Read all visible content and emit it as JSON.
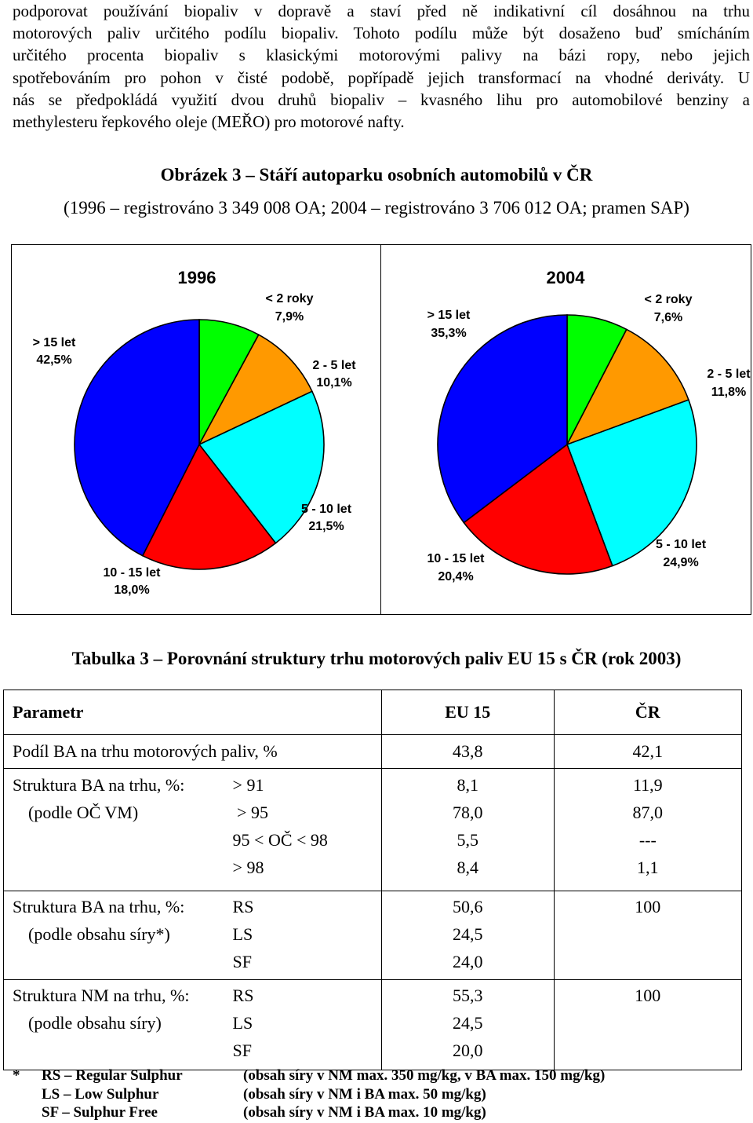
{
  "paragraph": {
    "lines": [
      "podporovat používání biopaliv v dopravě a staví před ně indikativní cíl dosáhnou na trhu",
      "motorových paliv určitého podílu biopaliv. Tohoto podílu může být dosaženo buď smícháním",
      "určitého procenta biopaliv s klasickými motorovými palivy na bázi ropy, nebo jejich",
      "spotřebováním pro pohon v čisté podobě, popřípadě jejich transformací na vhodné deriváty. U",
      "nás se předpokládá využití dvou druhů biopaliv – kvasného lihu pro automobilové benziny a",
      "methylesteru řepkového oleje (MEŘO) pro motorové nafty."
    ]
  },
  "figure": {
    "title": "Obrázek 3 – Stáří autoparku osobních automobilů v ČR",
    "subtitle": "(1996 – registrováno 3 349 008 OA; 2004 – registrováno 3 706 012 OA; pramen SAP)"
  },
  "chart_data": [
    {
      "type": "pie",
      "title": "1996",
      "slices": [
        {
          "label": "< 2 roky",
          "value": 7.9,
          "value_text": "7,9%",
          "color": "#00ff00"
        },
        {
          "label": "2 - 5 let",
          "value": 10.1,
          "value_text": "10,1%",
          "color": "#ff9900"
        },
        {
          "label": "5 - 10 let",
          "value": 21.5,
          "value_text": "21,5%",
          "color": "#00ffff"
        },
        {
          "label": "10 - 15 let",
          "value": 18.0,
          "value_text": "18,0%",
          "color": "#ff0000"
        },
        {
          "label": "> 15 let",
          "value": 42.5,
          "value_text": "42,5%",
          "color": "#0000ff"
        }
      ]
    },
    {
      "type": "pie",
      "title": "2004",
      "slices": [
        {
          "label": "< 2 roky",
          "value": 7.6,
          "value_text": "7,6%",
          "color": "#00ff00"
        },
        {
          "label": "2 - 5 let",
          "value": 11.8,
          "value_text": "11,8%",
          "color": "#ff9900"
        },
        {
          "label": "5 - 10 let",
          "value": 24.9,
          "value_text": "24,9%",
          "color": "#00ffff"
        },
        {
          "label": "10 - 15 let",
          "value": 20.4,
          "value_text": "20,4%",
          "color": "#ff0000"
        },
        {
          "label": "> 15 let",
          "value": 35.3,
          "value_text": "35,3%",
          "color": "#0000ff"
        }
      ]
    }
  ],
  "table": {
    "title": "Tabulka 3 – Porovnání struktury trhu motorových paliv EU 15 s ČR (rok 2003)",
    "headers": [
      "Parametr",
      "EU 15",
      "ČR"
    ],
    "row_share": {
      "label": "Podíl BA na trhu motorových paliv, %",
      "eu": "43,8",
      "cr": "42,1"
    },
    "row_octane": {
      "label1": "Struktura BA na trhu, %:",
      "label2": "(podle OČ VM)",
      "sub": [
        "> 91",
        " > 95",
        "95 < OČ < 98",
        "> 98"
      ],
      "eu": [
        "8,1",
        "78,0",
        "5,5",
        "8,4"
      ],
      "cr": [
        "11,9",
        "87,0",
        "---",
        "1,1"
      ]
    },
    "row_sulfur_ba": {
      "label1": "Struktura BA na trhu, %:",
      "label2": "(podle obsahu síry*)",
      "sub": [
        "RS",
        "LS",
        "SF"
      ],
      "eu": [
        "50,6",
        "24,5",
        "24,0"
      ],
      "cr": "100"
    },
    "row_sulfur_nm": {
      "label1": "Struktura NM na trhu, %:",
      "label2": "(podle obsahu síry)",
      "sub": [
        "RS",
        "LS",
        "SF"
      ],
      "eu": [
        "55,3",
        "24,5",
        "20,0"
      ],
      "cr": "100"
    }
  },
  "footnote": {
    "star": "*",
    "rows": [
      {
        "abbr": "RS – Regular Sulphur",
        "desc": "(obsah síry v NM max. 350 mg/kg, v BA max. 150 mg/kg)"
      },
      {
        "abbr": "LS – Low Sulphur",
        "desc": "(obsah síry v NM i BA max. 50 mg/kg)"
      },
      {
        "abbr": "SF – Sulphur Free",
        "desc": "(obsah síry v NM i BA max. 10 mg/kg)"
      }
    ]
  }
}
